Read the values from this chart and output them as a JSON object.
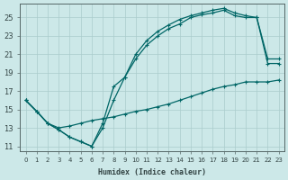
{
  "xlabel": "Humidex (Indice chaleur)",
  "ylabel": "",
  "xlim": [
    -0.5,
    23.5
  ],
  "ylim": [
    10.5,
    26.5
  ],
  "xticks": [
    0,
    1,
    2,
    3,
    4,
    5,
    6,
    7,
    8,
    9,
    10,
    11,
    12,
    13,
    14,
    15,
    16,
    17,
    18,
    19,
    20,
    21,
    22,
    23
  ],
  "yticks": [
    11,
    13,
    15,
    17,
    19,
    21,
    23,
    25
  ],
  "background_color": "#cce8e8",
  "grid_color": "#aacccc",
  "line_color": "#006666",
  "line1_x": [
    0,
    1,
    2,
    3,
    4,
    5,
    6,
    7,
    8,
    9,
    10,
    11,
    12,
    13,
    14,
    15,
    16,
    17,
    18,
    19,
    20,
    21,
    22,
    23
  ],
  "line1_y": [
    16,
    14.8,
    13.5,
    12.8,
    12.0,
    11.5,
    11.0,
    13.5,
    17.5,
    18.5,
    21.0,
    22.5,
    23.5,
    24.2,
    24.8,
    25.2,
    25.5,
    25.8,
    26.0,
    25.5,
    25.2,
    25.0,
    20.0,
    20.0
  ],
  "line2_x": [
    0,
    1,
    2,
    3,
    4,
    5,
    6,
    7,
    8,
    9,
    10,
    11,
    12,
    13,
    14,
    15,
    16,
    17,
    18,
    19,
    20,
    21,
    22,
    23
  ],
  "line2_y": [
    16,
    14.8,
    13.5,
    12.8,
    12.0,
    11.5,
    11.0,
    13.0,
    16.0,
    18.5,
    20.5,
    22.0,
    23.0,
    23.8,
    24.3,
    25.0,
    25.3,
    25.5,
    25.8,
    25.2,
    25.0,
    25.0,
    20.5,
    20.5
  ],
  "line3_x": [
    0,
    1,
    2,
    3,
    4,
    5,
    6,
    7,
    8,
    9,
    10,
    11,
    12,
    13,
    14,
    15,
    16,
    17,
    18,
    19,
    20,
    21,
    22,
    23
  ],
  "line3_y": [
    16,
    14.8,
    13.5,
    13.0,
    13.2,
    13.5,
    13.8,
    14.0,
    14.2,
    14.5,
    14.8,
    15.0,
    15.3,
    15.6,
    16.0,
    16.4,
    16.8,
    17.2,
    17.5,
    17.7,
    18.0,
    18.0,
    18.0,
    18.2
  ]
}
